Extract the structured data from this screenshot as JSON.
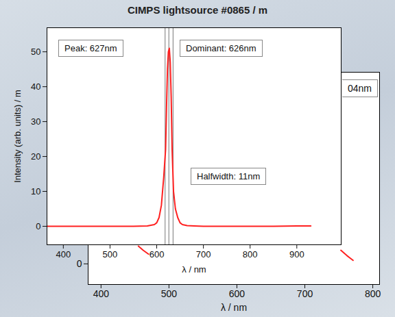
{
  "chart_data": [
    {
      "type": "line",
      "title": "CIMPS lightsource #0865 / m",
      "x_label": "λ / nm",
      "y_label": "Intensity (arb. units) / m",
      "x": [
        365,
        400,
        450,
        500,
        550,
        580,
        595,
        600,
        605,
        610,
        615,
        619,
        621,
        623,
        625,
        627,
        629,
        631,
        633,
        636,
        640,
        645,
        650,
        655,
        665,
        680,
        700,
        750,
        800,
        850,
        900,
        930
      ],
      "values": [
        0,
        0,
        0,
        0,
        0,
        0.1,
        0.5,
        1,
        2.5,
        6,
        14,
        22,
        34,
        45,
        50,
        51,
        47,
        37,
        22,
        10,
        5,
        2.5,
        1,
        0.5,
        0.2,
        0.1,
        0,
        0,
        0,
        0,
        0.1,
        0.1
      ],
      "color": "#ff2020",
      "xlim": [
        365,
        995
      ],
      "ylim": [
        -5.3,
        56.9
      ],
      "xticks": [
        400,
        500,
        600,
        700,
        800,
        900
      ],
      "yticks": [
        0,
        10,
        20,
        30,
        40,
        50
      ],
      "vlines": [
        618,
        626,
        635
      ],
      "annotations": [
        "Peak: 627nm",
        "Dominant: 626nm",
        "Halfwidth: 11nm"
      ],
      "grid": false
    },
    {
      "type": "line",
      "x_label": "λ / nm",
      "x": [
        455,
        462,
        470,
        600,
        753,
        762,
        771
      ],
      "values": [
        0.86,
        0.66,
        0.47,
        null,
        0.66,
        0.4,
        0.17
      ],
      "color": "#ff2020",
      "xlim": [
        381,
        810
      ],
      "ylim": [
        -1,
        9.3
      ],
      "xticks": [
        400,
        500,
        600,
        700,
        800
      ],
      "yticks": [
        0
      ],
      "annotations": [
        "04nm"
      ],
      "grid": false
    }
  ]
}
